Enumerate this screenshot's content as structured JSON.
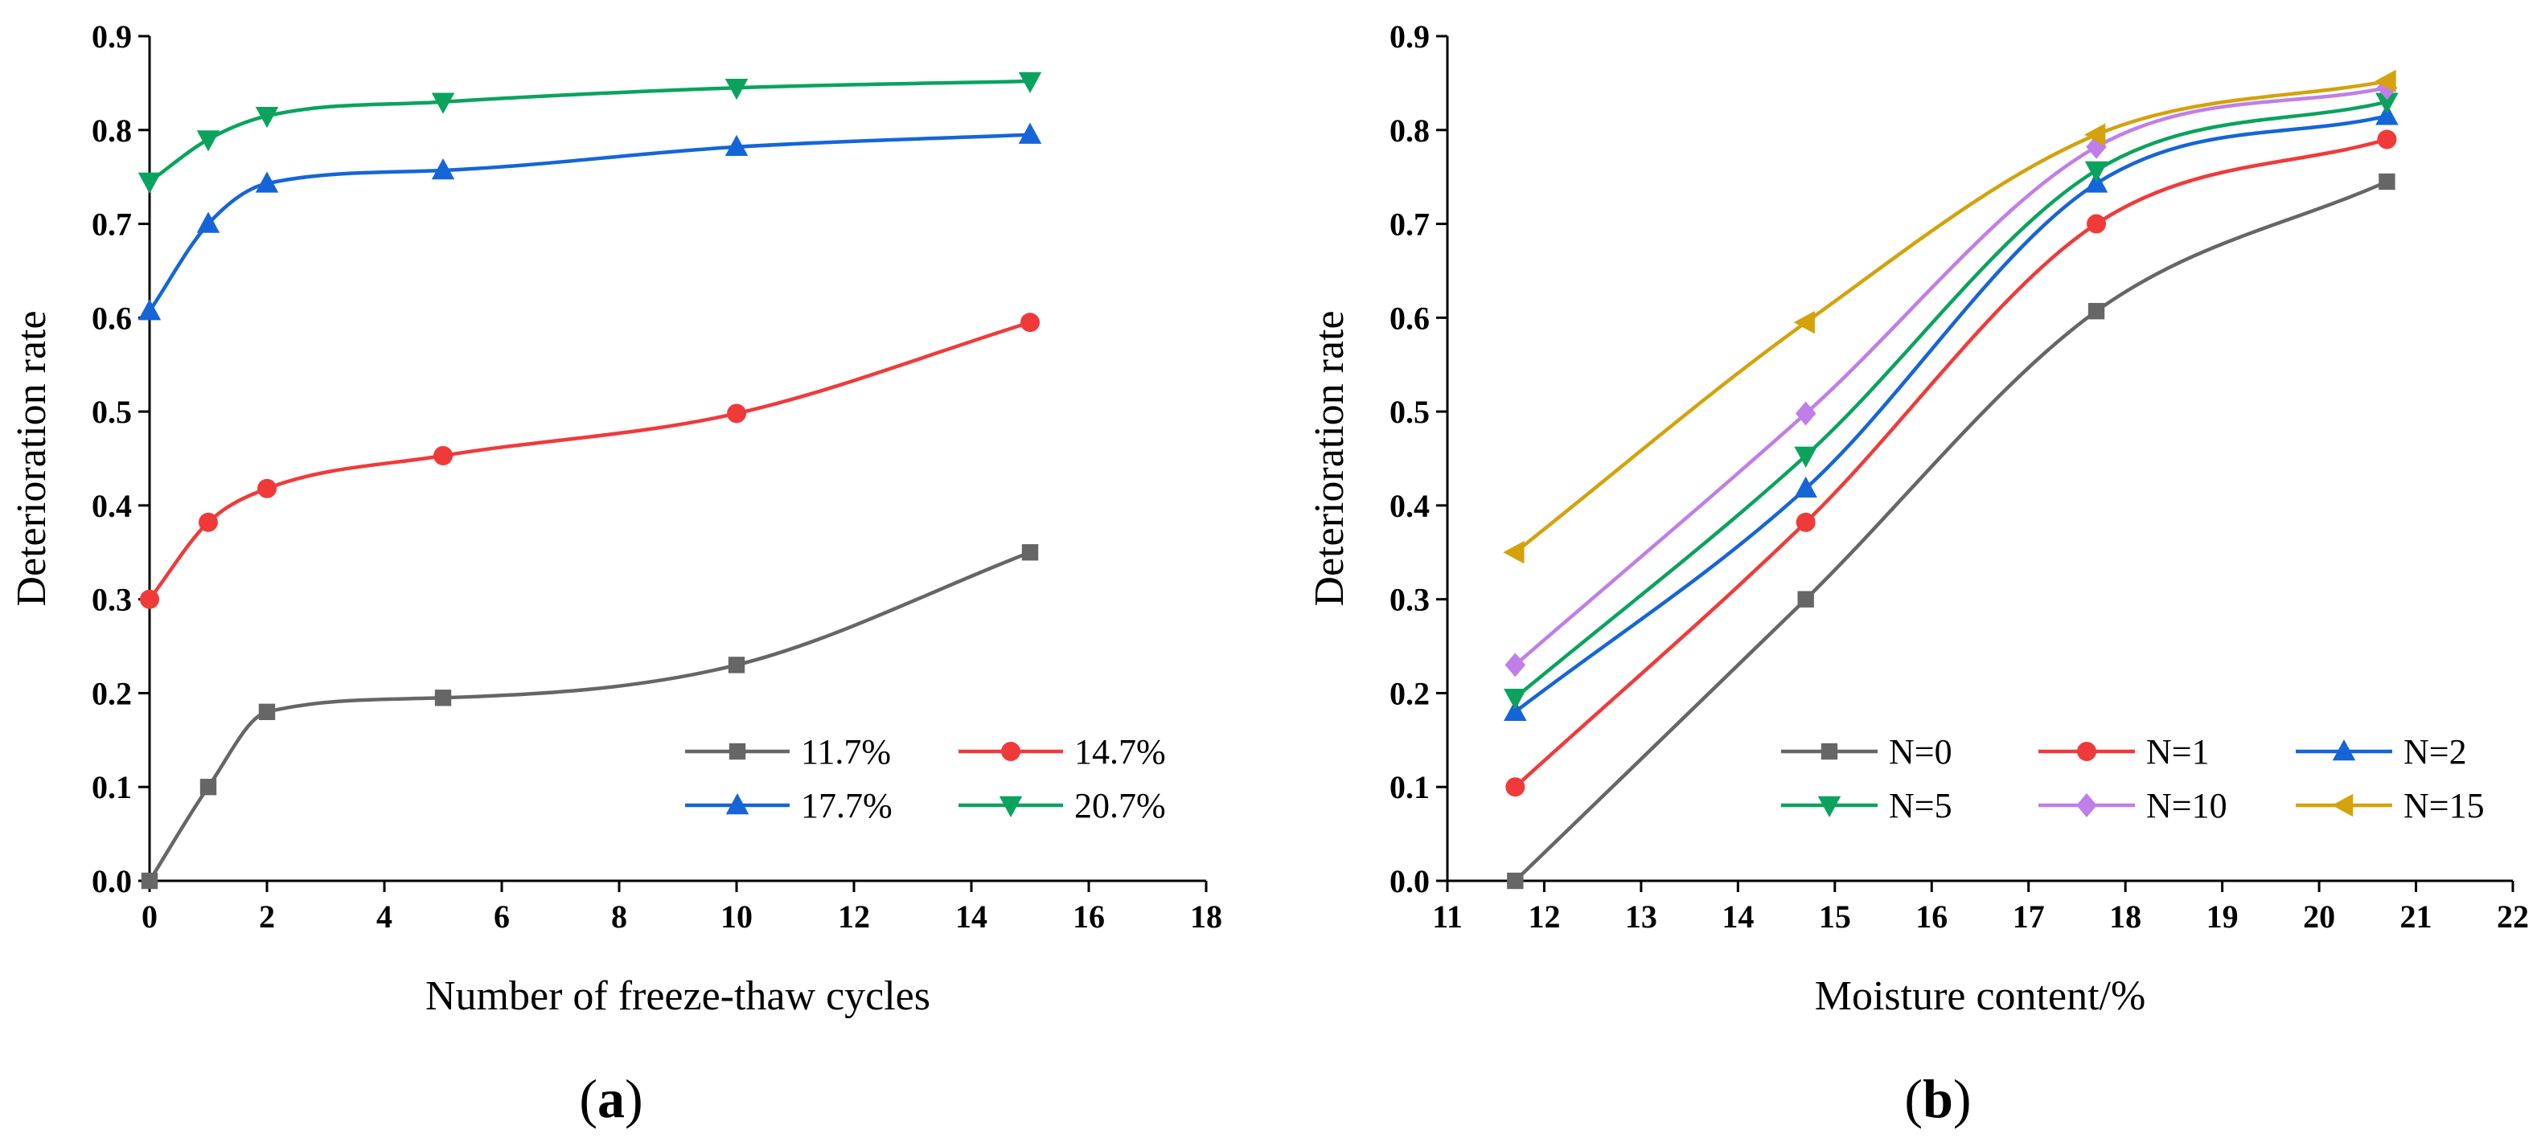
{
  "chart_data": [
    {
      "type": "line",
      "panel": "(a)",
      "panel_letter": "a",
      "title": "",
      "xlabel": "Number of freeze-thaw cycles",
      "ylabel": "Deterioration rate",
      "xlim": [
        0,
        18
      ],
      "ylim": [
        0,
        0.9
      ],
      "xticks": [
        "0",
        "2",
        "4",
        "6",
        "8",
        "10",
        "12",
        "14",
        "16",
        "18"
      ],
      "yticks": [
        "0.0",
        "0.1",
        "0.2",
        "0.3",
        "0.4",
        "0.5",
        "0.6",
        "0.7",
        "0.8",
        "0.9"
      ],
      "legend_position": "bottom-right",
      "legend_columns": 2,
      "grid": false,
      "x": [
        0,
        1,
        2,
        5,
        10,
        15
      ],
      "series": [
        {
          "name": "11.7%",
          "color": "#666666",
          "marker": "square",
          "values": [
            0.0,
            0.1,
            0.18,
            0.195,
            0.23,
            0.35
          ]
        },
        {
          "name": "14.7%",
          "color": "#f03a3a",
          "marker": "circle",
          "values": [
            0.3,
            0.382,
            0.418,
            0.453,
            0.498,
            0.595
          ]
        },
        {
          "name": "17.7%",
          "color": "#1565d8",
          "marker": "triangle-up",
          "values": [
            0.607,
            0.7,
            0.743,
            0.757,
            0.782,
            0.795
          ]
        },
        {
          "name": "20.7%",
          "color": "#0aa35e",
          "marker": "triangle-down",
          "values": [
            0.745,
            0.79,
            0.815,
            0.83,
            0.845,
            0.852
          ]
        }
      ]
    },
    {
      "type": "line",
      "panel": "(b)",
      "panel_letter": "b",
      "title": "",
      "xlabel": "Moisture content/%",
      "ylabel": "Deterioration rate",
      "xlim": [
        11,
        22
      ],
      "ylim": [
        0,
        0.9
      ],
      "xticks": [
        "11",
        "12",
        "13",
        "14",
        "15",
        "16",
        "17",
        "18",
        "19",
        "20",
        "21",
        "22"
      ],
      "yticks": [
        "0.0",
        "0.1",
        "0.2",
        "0.3",
        "0.4",
        "0.5",
        "0.6",
        "0.7",
        "0.8",
        "0.9"
      ],
      "legend_position": "bottom-right",
      "legend_columns": 3,
      "grid": false,
      "x": [
        11.7,
        14.7,
        17.7,
        20.7
      ],
      "series": [
        {
          "name": "N=0",
          "color": "#666666",
          "marker": "square",
          "values": [
            0.0,
            0.3,
            0.607,
            0.745
          ]
        },
        {
          "name": "N=1",
          "color": "#f03a3a",
          "marker": "circle",
          "values": [
            0.1,
            0.382,
            0.7,
            0.79
          ]
        },
        {
          "name": "N=2",
          "color": "#1565d8",
          "marker": "triangle-up",
          "values": [
            0.18,
            0.418,
            0.743,
            0.815
          ]
        },
        {
          "name": "N=5",
          "color": "#0aa35e",
          "marker": "triangle-down",
          "values": [
            0.195,
            0.453,
            0.757,
            0.83
          ]
        },
        {
          "name": "N=10",
          "color": "#c07ee8",
          "marker": "diamond",
          "values": [
            0.23,
            0.498,
            0.782,
            0.845
          ]
        },
        {
          "name": "N=15",
          "color": "#d4a20a",
          "marker": "triangle-left",
          "values": [
            0.35,
            0.595,
            0.795,
            0.852
          ]
        }
      ]
    }
  ]
}
